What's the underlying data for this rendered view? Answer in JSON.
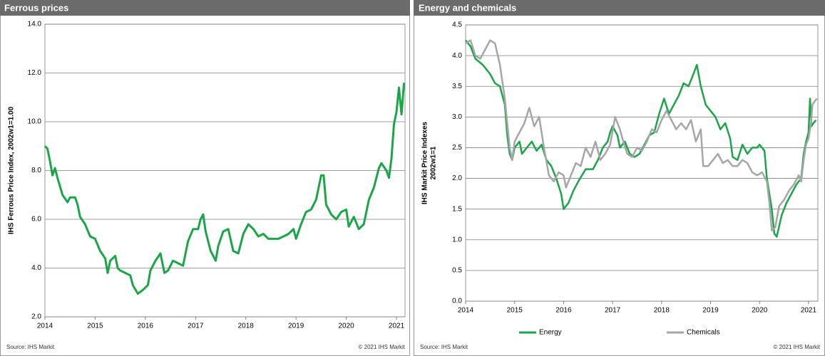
{
  "chart_data": [
    {
      "type": "line",
      "title": "Ferrous prices",
      "ylabel": "IHS Ferrous Price Index, 2002w1=1.00",
      "source": "Source: IHS Markit",
      "copyright": "© 2021 IHS Markit",
      "xlim": [
        2014,
        2021.17
      ],
      "xticks": [
        2014,
        2015,
        2016,
        2017,
        2018,
        2019,
        2020,
        2021
      ],
      "ylim": [
        2,
        14
      ],
      "yticks": [
        {
          "value": 2,
          "label": "2.0"
        },
        {
          "value": 4,
          "label": "4.0"
        },
        {
          "value": 6,
          "label": "6.0"
        },
        {
          "value": 8,
          "label": "8.0"
        },
        {
          "value": 10,
          "label": "10.0"
        },
        {
          "value": 12,
          "label": "12.0"
        },
        {
          "value": 14,
          "label": "14.0"
        }
      ],
      "grid": true,
      "color": "#1aa648",
      "x": [
        2014.0,
        2014.05,
        2014.1,
        2014.15,
        2014.2,
        2014.25,
        2014.35,
        2014.45,
        2014.5,
        2014.6,
        2014.65,
        2014.7,
        2014.8,
        2014.9,
        2015.0,
        2015.1,
        2015.2,
        2015.25,
        2015.3,
        2015.4,
        2015.45,
        2015.5,
        2015.6,
        2015.7,
        2015.75,
        2015.85,
        2015.95,
        2016.05,
        2016.1,
        2016.2,
        2016.3,
        2016.38,
        2016.45,
        2016.55,
        2016.65,
        2016.75,
        2016.85,
        2016.95,
        2017.05,
        2017.1,
        2017.15,
        2017.2,
        2017.3,
        2017.4,
        2017.45,
        2017.55,
        2017.65,
        2017.75,
        2017.85,
        2017.95,
        2018.05,
        2018.15,
        2018.25,
        2018.35,
        2018.45,
        2018.55,
        2018.65,
        2018.75,
        2018.85,
        2018.95,
        2019.0,
        2019.1,
        2019.2,
        2019.3,
        2019.4,
        2019.5,
        2019.55,
        2019.6,
        2019.7,
        2019.8,
        2019.9,
        2020.0,
        2020.05,
        2020.15,
        2020.25,
        2020.35,
        2020.45,
        2020.55,
        2020.65,
        2020.7,
        2020.8,
        2020.85,
        2020.9,
        2020.95,
        2021.0,
        2021.05,
        2021.1,
        2021.15
      ],
      "values": [
        9.0,
        8.9,
        8.4,
        7.8,
        8.1,
        7.7,
        7.0,
        6.7,
        6.9,
        6.9,
        6.6,
        6.1,
        5.8,
        5.3,
        5.2,
        4.7,
        4.4,
        3.8,
        4.3,
        4.5,
        4.0,
        3.9,
        3.8,
        3.7,
        3.3,
        2.95,
        3.1,
        3.3,
        3.9,
        4.3,
        4.6,
        3.8,
        3.9,
        4.3,
        4.2,
        4.1,
        5.1,
        5.6,
        5.6,
        6.0,
        6.2,
        5.5,
        4.7,
        4.3,
        4.9,
        5.5,
        5.6,
        4.7,
        4.6,
        5.4,
        5.8,
        5.6,
        5.3,
        5.4,
        5.2,
        5.2,
        5.2,
        5.3,
        5.4,
        5.6,
        5.2,
        5.8,
        6.3,
        6.4,
        6.8,
        7.8,
        7.8,
        6.6,
        6.2,
        6.0,
        6.3,
        6.4,
        5.7,
        6.1,
        5.6,
        5.8,
        6.8,
        7.3,
        8.1,
        8.3,
        8.0,
        7.7,
        8.5,
        9.9,
        10.4,
        11.4,
        10.3,
        11.6
      ]
    },
    {
      "type": "line",
      "title": "Energy and chemicals",
      "ylabel": [
        "IHS Markit Price Indexes",
        "2002w1=1"
      ],
      "source": "Source: IHS Markit",
      "copyright": "© 2021 IHS Markit",
      "xlim": [
        2014,
        2021.19
      ],
      "xticks": [
        2014,
        2015,
        2016,
        2017,
        2018,
        2019,
        2020,
        2021
      ],
      "ylim": [
        0,
        4.5
      ],
      "yticks": [
        {
          "value": 0,
          "label": "0.0"
        },
        0.5,
        {
          "value": 1,
          "label": "1.0"
        },
        1.5,
        {
          "value": 2,
          "label": "2.0"
        },
        2.5,
        {
          "value": 3,
          "label": "3.0"
        },
        3.5,
        {
          "value": 4,
          "label": "4.0"
        },
        4.5
      ],
      "grid": true,
      "series": [
        {
          "name": "Energy",
          "color": "#1aa648",
          "x": [
            2014.0,
            2014.1,
            2014.2,
            2014.35,
            2014.5,
            2014.6,
            2014.7,
            2014.8,
            2014.85,
            2014.9,
            2014.95,
            2015.0,
            2015.1,
            2015.15,
            2015.25,
            2015.35,
            2015.45,
            2015.55,
            2015.65,
            2015.75,
            2015.85,
            2015.95,
            2016.0,
            2016.1,
            2016.2,
            2016.3,
            2016.45,
            2016.6,
            2016.7,
            2016.8,
            2016.9,
            2016.95,
            2017.0,
            2017.1,
            2017.15,
            2017.25,
            2017.35,
            2017.45,
            2017.55,
            2017.65,
            2017.75,
            2017.85,
            2017.95,
            2018.05,
            2018.15,
            2018.25,
            2018.35,
            2018.45,
            2018.55,
            2018.65,
            2018.72,
            2018.8,
            2018.9,
            2019.0,
            2019.1,
            2019.2,
            2019.3,
            2019.4,
            2019.45,
            2019.55,
            2019.65,
            2019.75,
            2019.85,
            2019.95,
            2020.0,
            2020.1,
            2020.15,
            2020.25,
            2020.3,
            2020.35,
            2020.45,
            2020.55,
            2020.65,
            2020.75,
            2020.85,
            2020.9,
            2020.95,
            2021.0,
            2021.03,
            2021.06,
            2021.1,
            2021.15
          ],
          "values": [
            4.25,
            4.15,
            3.95,
            3.85,
            3.7,
            3.55,
            3.5,
            3.2,
            2.7,
            2.4,
            2.3,
            2.5,
            2.6,
            2.4,
            2.5,
            2.6,
            2.45,
            2.55,
            2.3,
            2.2,
            2.0,
            1.75,
            1.5,
            1.6,
            1.8,
            1.95,
            2.15,
            2.15,
            2.3,
            2.5,
            2.6,
            2.75,
            2.85,
            2.7,
            2.5,
            2.6,
            2.4,
            2.35,
            2.4,
            2.55,
            2.7,
            2.75,
            3.05,
            3.3,
            3.05,
            3.2,
            3.35,
            3.55,
            3.5,
            3.7,
            3.85,
            3.5,
            3.2,
            3.1,
            3.0,
            2.8,
            2.9,
            2.65,
            2.35,
            2.3,
            2.55,
            2.4,
            2.5,
            2.5,
            2.55,
            2.45,
            2.0,
            1.5,
            1.1,
            1.05,
            1.4,
            1.6,
            1.75,
            1.9,
            2.0,
            2.4,
            2.6,
            2.75,
            3.3,
            2.85,
            2.9,
            2.95
          ]
        },
        {
          "name": "Chemicals",
          "color": "#a6a6a6",
          "x": [
            2014.0,
            2014.1,
            2014.2,
            2014.3,
            2014.4,
            2014.5,
            2014.6,
            2014.7,
            2014.8,
            2014.85,
            2014.9,
            2014.95,
            2015.0,
            2015.1,
            2015.2,
            2015.3,
            2015.4,
            2015.5,
            2015.6,
            2015.7,
            2015.8,
            2015.9,
            2016.0,
            2016.05,
            2016.15,
            2016.25,
            2016.35,
            2016.45,
            2016.55,
            2016.65,
            2016.75,
            2016.85,
            2016.95,
            2017.05,
            2017.15,
            2017.2,
            2017.3,
            2017.4,
            2017.5,
            2017.6,
            2017.7,
            2017.8,
            2017.9,
            2018.0,
            2018.1,
            2018.2,
            2018.3,
            2018.4,
            2018.5,
            2018.6,
            2018.7,
            2018.8,
            2018.85,
            2018.95,
            2019.05,
            2019.15,
            2019.25,
            2019.35,
            2019.45,
            2019.55,
            2019.65,
            2019.75,
            2019.85,
            2019.95,
            2020.05,
            2020.15,
            2020.2,
            2020.25,
            2020.32,
            2020.4,
            2020.5,
            2020.6,
            2020.7,
            2020.8,
            2020.85,
            2020.9,
            2020.95,
            2021.0,
            2021.05,
            2021.08,
            2021.12,
            2021.17
          ],
          "values": [
            4.2,
            4.25,
            4.0,
            3.95,
            4.1,
            4.25,
            4.2,
            3.85,
            3.3,
            2.9,
            2.5,
            2.3,
            2.6,
            2.75,
            2.9,
            3.15,
            2.85,
            3.0,
            2.5,
            2.05,
            1.95,
            2.1,
            2.05,
            1.85,
            2.05,
            2.25,
            2.2,
            2.5,
            2.35,
            2.6,
            2.3,
            2.4,
            2.55,
            3.0,
            2.8,
            2.65,
            2.4,
            2.35,
            2.5,
            2.45,
            2.6,
            2.8,
            2.75,
            2.95,
            3.1,
            2.95,
            2.8,
            2.9,
            2.8,
            2.95,
            2.6,
            2.8,
            2.2,
            2.2,
            2.3,
            2.4,
            2.25,
            2.3,
            2.2,
            2.2,
            2.3,
            2.25,
            2.1,
            2.05,
            2.1,
            1.95,
            1.6,
            1.15,
            1.2,
            1.55,
            1.65,
            1.8,
            1.9,
            2.05,
            1.95,
            2.3,
            2.55,
            2.65,
            2.9,
            3.2,
            3.25,
            3.3
          ]
        }
      ]
    }
  ]
}
